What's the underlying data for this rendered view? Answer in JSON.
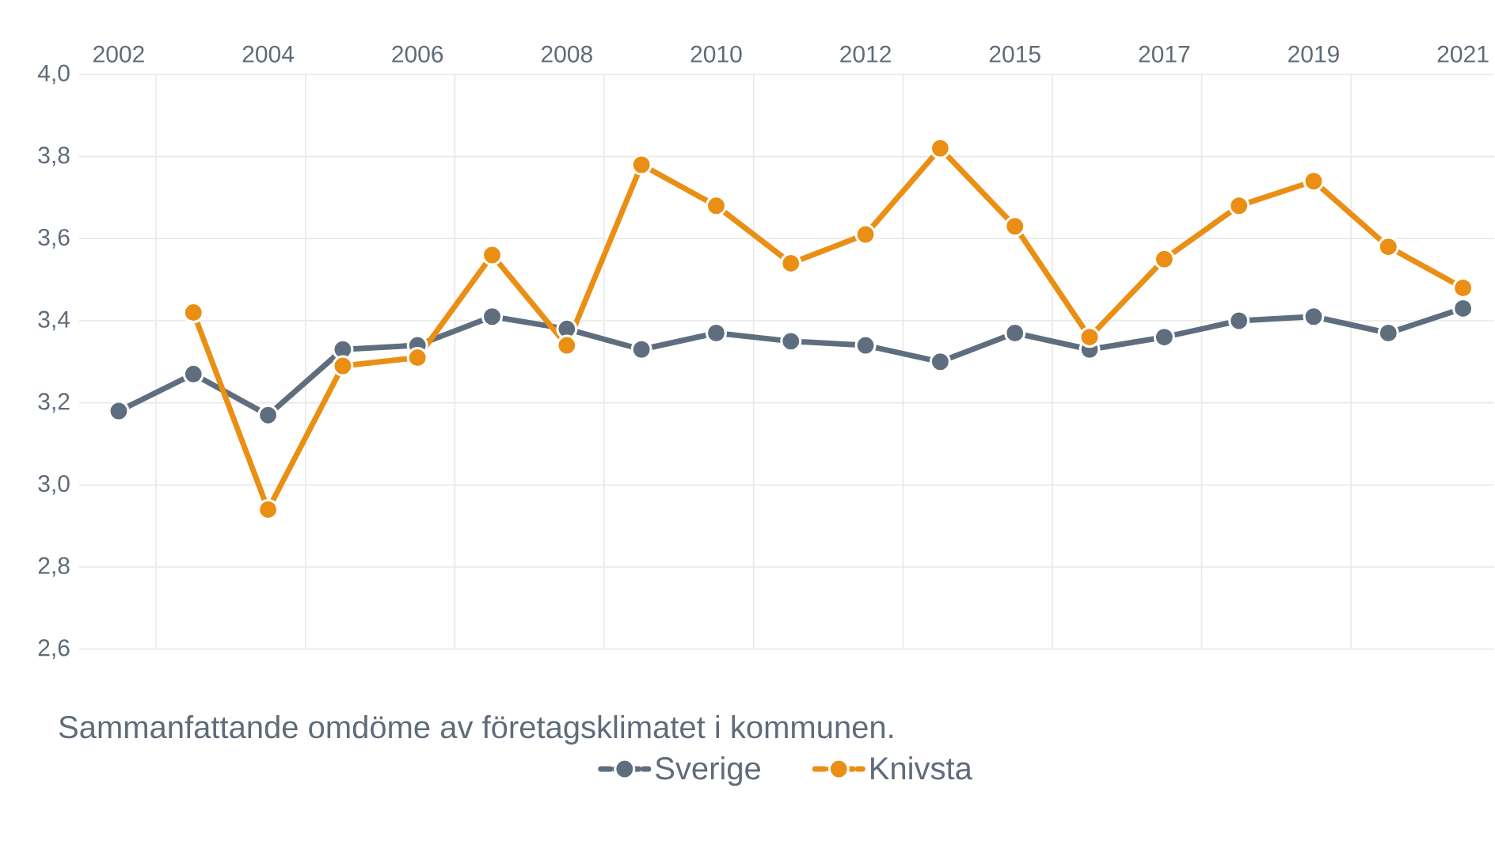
{
  "chart_data": {
    "type": "line",
    "categories": [
      "2002",
      null,
      "2004",
      null,
      "2006",
      null,
      "2008",
      null,
      "2010",
      null,
      "2012",
      null,
      "2015",
      null,
      "2017",
      null,
      "2019",
      null,
      "2021"
    ],
    "series": [
      {
        "name": "Sverige",
        "color": "#5f6e7e",
        "values": [
          3.18,
          3.27,
          3.17,
          3.33,
          3.34,
          3.41,
          3.38,
          3.33,
          3.37,
          3.35,
          3.34,
          3.3,
          3.37,
          3.33,
          3.36,
          3.4,
          3.41,
          3.37,
          3.43
        ]
      },
      {
        "name": "Knivsta",
        "color": "#ea8f14",
        "values": [
          null,
          3.42,
          2.94,
          3.29,
          3.31,
          3.56,
          3.34,
          3.78,
          3.68,
          3.54,
          3.61,
          3.82,
          3.63,
          3.36,
          3.55,
          3.68,
          3.74,
          3.58,
          3.48
        ]
      }
    ],
    "ylim": [
      2.6,
      4.0
    ],
    "yticks": [
      {
        "value": 2.6,
        "label": "2,6"
      },
      {
        "value": 2.8,
        "label": "2,8"
      },
      {
        "value": 3.0,
        "label": "3,0"
      },
      {
        "value": 3.2,
        "label": "3,2"
      },
      {
        "value": 3.4,
        "label": "3,4"
      },
      {
        "value": 3.6,
        "label": "3,6"
      },
      {
        "value": 3.8,
        "label": "3,8"
      },
      {
        "value": 4.0,
        "label": "4,0"
      }
    ],
    "grid": true,
    "legend": "bottom",
    "marker": "circle",
    "line_style": "solid",
    "annotations": [
      "Sammanfattande omdöme av företagsklimatet i kommunen."
    ]
  }
}
